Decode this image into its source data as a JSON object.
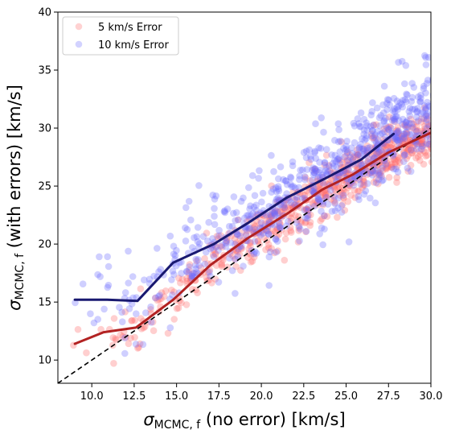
{
  "chart_data": {
    "type": "scatter",
    "xlabel": {
      "symbol": "σ",
      "subscript": "MCMC, f",
      "rest": " (no error) [km/s]"
    },
    "ylabel": {
      "symbol": "σ",
      "subscript": "MCMC, f",
      "rest": " (with errors) [km/s]"
    },
    "xlim": [
      8.0,
      30.0
    ],
    "ylim": [
      8.0,
      40.0
    ],
    "xticks": [
      "10.0",
      "12.5",
      "15.0",
      "17.5",
      "20.0",
      "22.5",
      "25.0",
      "27.5",
      "30.0"
    ],
    "yticks": [
      "10",
      "15",
      "20",
      "25",
      "30",
      "35",
      "40"
    ],
    "grid": false,
    "legend_position": "upper-left",
    "series": [
      {
        "name": "5 km/s Error",
        "color": "#ff6b6b",
        "trend_color": "#b22222",
        "trend": {
          "x": [
            9.0,
            10.7,
            12.6,
            14.8,
            17.0,
            19.2,
            21.5,
            23.6,
            25.4,
            27.5,
            30.0
          ],
          "y": [
            11.4,
            12.4,
            12.8,
            15.2,
            18.2,
            20.5,
            22.6,
            24.7,
            26.0,
            27.9,
            29.6
          ]
        }
      },
      {
        "name": "10 km/s Error",
        "color": "#6b6bff",
        "trend_color": "#191970",
        "trend": {
          "x": [
            9.0,
            10.9,
            12.7,
            14.8,
            17.2,
            19.3,
            21.5,
            23.7,
            25.9,
            27.8
          ],
          "y": [
            15.2,
            15.2,
            15.1,
            18.4,
            20.0,
            21.9,
            24.0,
            25.6,
            27.3,
            29.5
          ]
        }
      }
    ],
    "reference_line": {
      "style": "dashed",
      "color": "#000000",
      "slope": 1,
      "intercept": 0
    }
  }
}
